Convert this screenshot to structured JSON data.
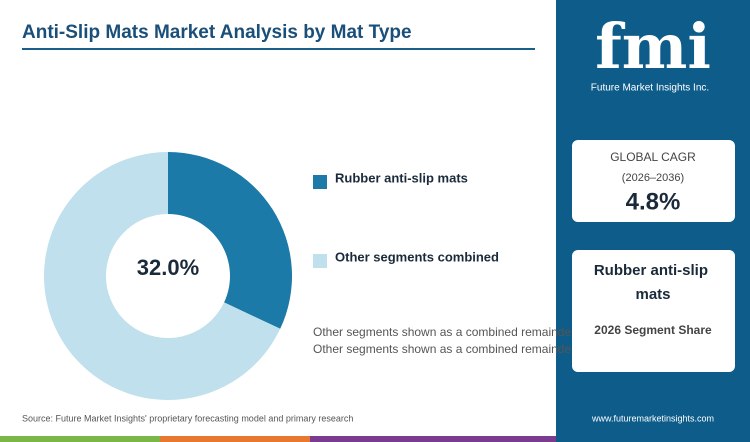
{
  "chart_data": {
    "type": "donut",
    "title": "Anti-Slip Mats Market Analysis by Mat Type",
    "categories": [
      "Rubber anti-slip mats",
      "Other segments combined"
    ],
    "values": [
      32.0,
      68.0
    ],
    "colors": [
      "#1b7aa7",
      "#bfe0ec"
    ],
    "center_label": "32.0%",
    "note": "Other segments shown as a combined remainder.",
    "source": "Source: Future Market Insights' proprietary forecasting model and primary research"
  },
  "sidebar": {
    "logo": "fmi",
    "logo_tagline": "Future Market Insights Inc.",
    "cagr_label": "GLOBAL CAGR",
    "cagr_period": "(2026–2036)",
    "cagr_value": "4.8%",
    "segment_name": "Rubber anti-slip mats",
    "segment_caption": "2026 Segment Share",
    "url": "www.futuremarketinsights.com"
  }
}
